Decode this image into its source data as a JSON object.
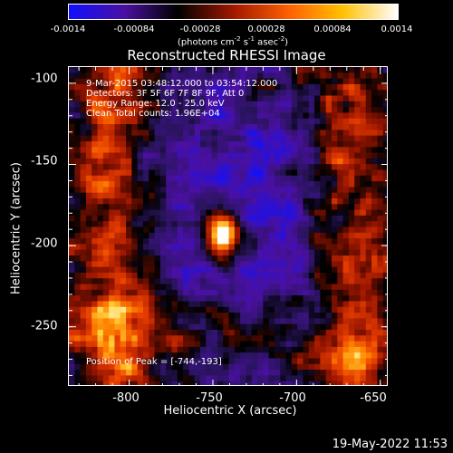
{
  "colorbar": {
    "tick_labels": [
      "-0.0014",
      "-0.00084",
      "-0.00028",
      "0.00028",
      "0.00084",
      "0.0014"
    ],
    "units_prefix": "(photons cm",
    "units_exp1": "-2",
    "units_mid1": " s",
    "units_exp2": "-1",
    "units_mid2": " asec",
    "units_exp3": "-2",
    "units_suffix": ")",
    "colors": [
      "#1010ff",
      "#4a10a0",
      "#000000",
      "#a01800",
      "#ff6000",
      "#ffc000",
      "#ffffff"
    ]
  },
  "plot": {
    "title": "Reconstructed RHESSI Image",
    "x_ticks": [
      "-800",
      "-750",
      "-700",
      "-650"
    ],
    "y_ticks": [
      "-100",
      "-150",
      "-200",
      "-250"
    ],
    "xlabel": "Heliocentric X (arcsec)",
    "ylabel": "Heliocentric Y (arcsec)",
    "info_lines": [
      "9-Mar-2015 03:48:12.000 to 03:54:12.000",
      "Detectors: 3F 5F 6F 7F 8F 9F, Att 0",
      "Energy Range: 12.0 - 25.0 keV",
      "Clean     Total counts: 1.96E+04"
    ],
    "peak_label": "Position of Peak = [-744,-193]"
  },
  "chart_data": {
    "type": "heatmap",
    "title": "Reconstructed RHESSI Image",
    "xlabel": "Heliocentric X (arcsec)",
    "ylabel": "Heliocentric Y (arcsec)",
    "xlim": [
      -836,
      -645
    ],
    "ylim": [
      -287,
      -90
    ],
    "peak": {
      "x": -744,
      "y": -193
    },
    "color_range": [
      -0.0014,
      0.0014
    ],
    "x_tick_values": [
      -800,
      -750,
      -700,
      -650
    ],
    "y_tick_values": [
      -100,
      -150,
      -200,
      -250
    ]
  },
  "footer": {
    "timestamp": "19-May-2022 11:53"
  }
}
